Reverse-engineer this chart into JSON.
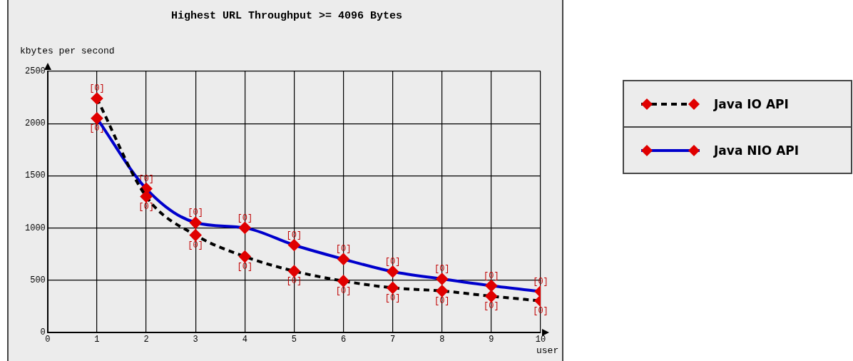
{
  "chart_data": {
    "type": "line",
    "title": "Highest URL Throughput >= 4096 Bytes",
    "xlabel": "user",
    "ylabel": "kbytes per second",
    "x": [
      1,
      2,
      3,
      4,
      5,
      6,
      7,
      8,
      9,
      10
    ],
    "series": [
      {
        "name": "Java IO API",
        "color": "#000000",
        "line_style": "dashed",
        "colors": [
          "#e00000",
          "#e00000",
          "#e00000",
          "#e00000",
          "#e00000",
          "#e00000",
          "#e00000",
          "#e00000",
          "#e00000",
          "#e00000"
        ],
        "values": [
          2240,
          1300,
          930,
          725,
          585,
          490,
          425,
          395,
          345,
          300
        ]
      },
      {
        "name": "Java NIO API",
        "color": "#0000cc",
        "line_style": "solid",
        "colors": [
          "#e00000",
          "#e00000",
          "#e00000",
          "#e00000",
          "#e00000",
          "#e00000",
          "#e00000",
          "#e00000",
          "#e00000",
          "#e00000"
        ],
        "values": [
          2050,
          1375,
          1050,
          1000,
          835,
          700,
          580,
          510,
          445,
          390
        ]
      }
    ],
    "annotations": [
      {
        "text": "[0]",
        "x": 1,
        "y": 2240
      },
      {
        "text": "[0]",
        "x": 2,
        "y": 1300
      },
      {
        "text": "[0]",
        "x": 3,
        "y": 930
      },
      {
        "text": "[0]",
        "x": 4,
        "y": 725
      },
      {
        "text": "[0]",
        "x": 5,
        "y": 585
      },
      {
        "text": "[0]",
        "x": 6,
        "y": 490
      },
      {
        "text": "[0]",
        "x": 7,
        "y": 425
      },
      {
        "text": "[0]",
        "x": 8,
        "y": 395
      },
      {
        "text": "[0]",
        "x": 9,
        "y": 345
      },
      {
        "text": "[0]",
        "x": 10,
        "y": 300
      },
      {
        "text": "[0]",
        "x": 1,
        "y": 2050
      },
      {
        "text": "[0]",
        "x": 2,
        "y": 1375
      },
      {
        "text": "[0]",
        "x": 3,
        "y": 1050
      },
      {
        "text": "[0]",
        "x": 4,
        "y": 1000
      },
      {
        "text": "[0]",
        "x": 5,
        "y": 835
      },
      {
        "text": "[0]",
        "x": 6,
        "y": 700
      },
      {
        "text": "[0]",
        "x": 7,
        "y": 580
      },
      {
        "text": "[0]",
        "x": 8,
        "y": 510
      },
      {
        "text": "[0]",
        "x": 9,
        "y": 445
      },
      {
        "text": "[0]",
        "x": 10,
        "y": 390
      }
    ],
    "xlim": [
      0,
      10
    ],
    "xticks": [
      0,
      1,
      2,
      3,
      4,
      5,
      6,
      7,
      8,
      9,
      10
    ],
    "ylim": [
      0,
      2500
    ],
    "yticks": [
      0,
      500,
      1000,
      1500,
      2000,
      2500
    ],
    "grid": true,
    "legend": "right",
    "marker": "diamond"
  }
}
